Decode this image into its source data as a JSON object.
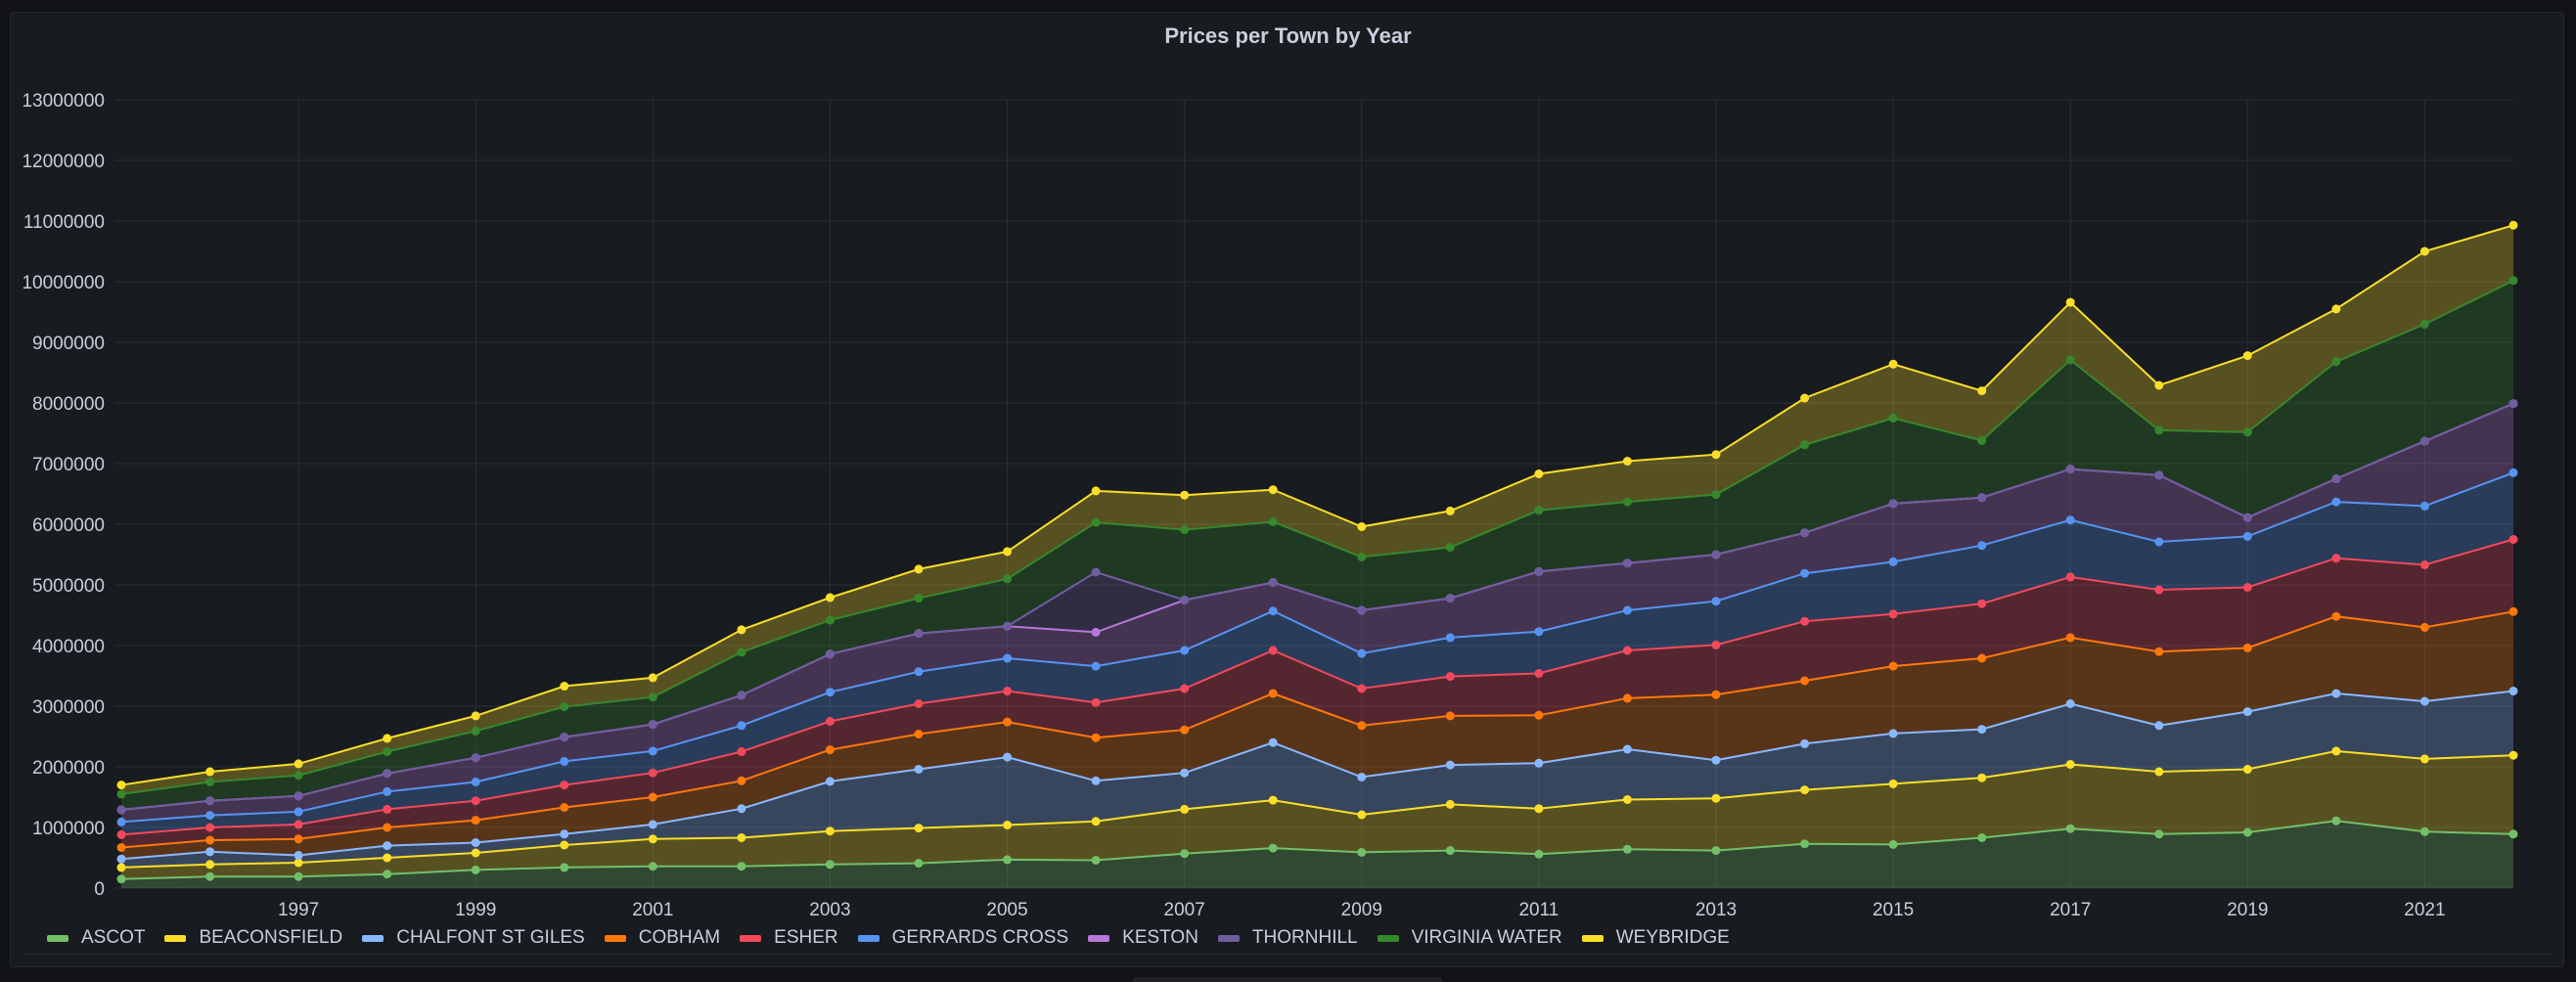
{
  "panel": {
    "title": "Prices per Town by Year"
  },
  "chart_data": {
    "type": "area",
    "stacked": true,
    "title": "Prices per Town by Year",
    "xlabel": "",
    "ylabel": "",
    "x": [
      1995,
      1996,
      1997,
      1998,
      1999,
      2000,
      2001,
      2002,
      2003,
      2004,
      2005,
      2006,
      2007,
      2008,
      2009,
      2010,
      2011,
      2012,
      2013,
      2014,
      2015,
      2016,
      2017,
      2018,
      2019,
      2020,
      2021,
      2022
    ],
    "xlim": [
      1995,
      2022
    ],
    "ylim": [
      0,
      13000000
    ],
    "x_ticks": [
      "1997",
      "1999",
      "2001",
      "2003",
      "2005",
      "2007",
      "2009",
      "2011",
      "2013",
      "2015",
      "2017",
      "2019",
      "2021"
    ],
    "y_ticks": [
      "0",
      "1000000",
      "2000000",
      "3000000",
      "4000000",
      "5000000",
      "6000000",
      "7000000",
      "8000000",
      "9000000",
      "10000000",
      "11000000",
      "12000000",
      "13000000"
    ],
    "grid": true,
    "legend_position": "bottom-left",
    "series": [
      {
        "name": "ASCOT",
        "color": "#73bf69",
        "values": [
          150000,
          190000,
          190000,
          230000,
          300000,
          340000,
          360000,
          360000,
          390000,
          410000,
          470000,
          460000,
          570000,
          660000,
          590000,
          620000,
          560000,
          640000,
          620000,
          730000,
          720000,
          830000,
          980000,
          890000,
          920000,
          1110000,
          930000,
          890000
        ]
      },
      {
        "name": "BEACONSFIELD",
        "color": "#fade2a",
        "values": [
          190000,
          200000,
          230000,
          270000,
          280000,
          370000,
          450000,
          470000,
          550000,
          580000,
          570000,
          640000,
          730000,
          790000,
          620000,
          760000,
          750000,
          820000,
          860000,
          890000,
          1000000,
          990000,
          1060000,
          1030000,
          1040000,
          1150000,
          1200000,
          1300000
        ]
      },
      {
        "name": "CHALFONT ST GILES",
        "color": "#8ab8ff",
        "values": [
          140000,
          210000,
          120000,
          200000,
          170000,
          180000,
          240000,
          480000,
          820000,
          970000,
          1120000,
          670000,
          600000,
          950000,
          620000,
          650000,
          750000,
          830000,
          630000,
          760000,
          830000,
          800000,
          1000000,
          760000,
          950000,
          950000,
          950000,
          1060000
        ]
      },
      {
        "name": "COBHAM",
        "color": "#ff780a",
        "values": [
          190000,
          190000,
          270000,
          300000,
          370000,
          440000,
          450000,
          460000,
          520000,
          580000,
          580000,
          710000,
          710000,
          810000,
          850000,
          810000,
          790000,
          840000,
          1080000,
          1040000,
          1110000,
          1170000,
          1090000,
          1220000,
          1050000,
          1270000,
          1220000,
          1310000
        ]
      },
      {
        "name": "ESHER",
        "color": "#f2495c",
        "values": [
          210000,
          210000,
          240000,
          300000,
          320000,
          370000,
          400000,
          480000,
          470000,
          500000,
          510000,
          580000,
          680000,
          710000,
          610000,
          650000,
          690000,
          790000,
          820000,
          980000,
          860000,
          900000,
          1000000,
          1020000,
          1000000,
          960000,
          1030000,
          1190000
        ]
      },
      {
        "name": "GERRARDS CROSS",
        "color": "#5794f2",
        "values": [
          210000,
          200000,
          210000,
          290000,
          310000,
          390000,
          360000,
          430000,
          480000,
          530000,
          540000,
          600000,
          630000,
          650000,
          580000,
          640000,
          690000,
          660000,
          720000,
          790000,
          860000,
          960000,
          940000,
          790000,
          840000,
          930000,
          970000,
          1100000
        ]
      },
      {
        "name": "KESTON",
        "color": "#b877d9",
        "values": [
          200000,
          240000,
          260000,
          300000,
          400000,
          400000,
          440000,
          500000,
          630000,
          630000,
          530000,
          560000,
          830000,
          470000,
          710000,
          650000,
          990000,
          780000,
          770000,
          670000,
          960000,
          790000,
          840000,
          1100000,
          310000,
          380000,
          1070000,
          1140000
        ]
      },
      {
        "name": "THORNHILL",
        "color": "#705da0",
        "values": [
          0,
          0,
          0,
          0,
          0,
          0,
          0,
          0,
          0,
          0,
          0,
          990000,
          0,
          0,
          0,
          0,
          0,
          0,
          0,
          0,
          0,
          0,
          0,
          0,
          0,
          0,
          0,
          0
        ]
      },
      {
        "name": "VIRGINIA WATER",
        "color": "#37872d",
        "values": [
          260000,
          310000,
          340000,
          360000,
          440000,
          500000,
          450000,
          710000,
          560000,
          580000,
          780000,
          820000,
          1160000,
          1000000,
          880000,
          840000,
          1010000,
          1010000,
          990000,
          1450000,
          1410000,
          940000,
          1800000,
          740000,
          1410000,
          1930000,
          1930000,
          2030000
        ]
      },
      {
        "name": "WEYBRIDGE",
        "color": "#fade2a",
        "values": [
          150000,
          170000,
          190000,
          220000,
          250000,
          340000,
          320000,
          370000,
          370000,
          480000,
          450000,
          520000,
          570000,
          530000,
          500000,
          600000,
          600000,
          670000,
          660000,
          770000,
          890000,
          820000,
          950000,
          740000,
          1260000,
          870000,
          1200000,
          910000
        ]
      }
    ]
  }
}
